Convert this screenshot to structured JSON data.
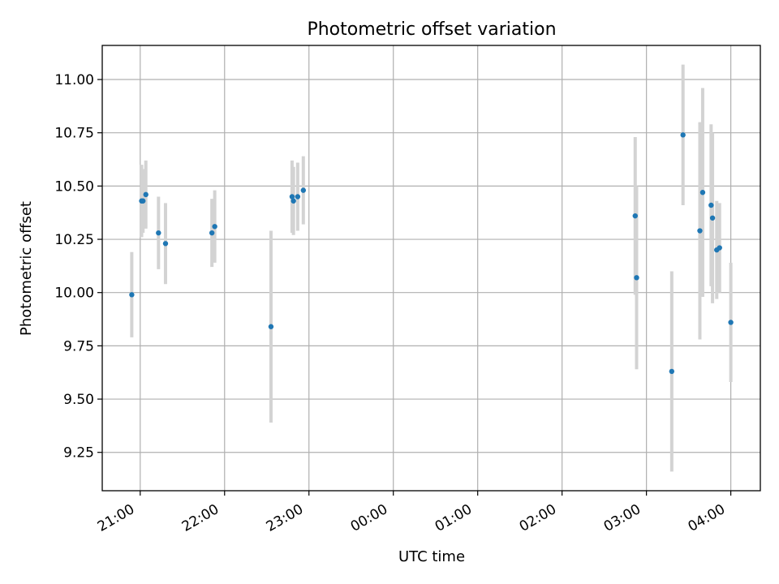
{
  "chart_data": {
    "type": "scatter",
    "title": "Photometric offset variation",
    "xlabel": "UTC time",
    "ylabel": "Photometric offset",
    "xlim": [
      "20:33",
      "04:21"
    ],
    "ylim": [
      9.07,
      11.16
    ],
    "x_ticks": [
      "21:00",
      "22:00",
      "23:00",
      "00:00",
      "01:00",
      "02:00",
      "03:00",
      "04:00"
    ],
    "y_ticks": [
      "9.25",
      "9.50",
      "9.75",
      "10.00",
      "10.25",
      "10.50",
      "10.75",
      "11.00"
    ],
    "grid": true,
    "colors": {
      "points": "#1f77b4",
      "error_bars": "#d3d3d3",
      "grid": "#b0b0b0",
      "axes": "#000000"
    },
    "points": [
      {
        "x": "20:54",
        "y": 9.99,
        "err": 0.2
      },
      {
        "x": "21:01",
        "y": 10.43,
        "err": 0.17
      },
      {
        "x": "21:02",
        "y": 10.43,
        "err": 0.15
      },
      {
        "x": "21:04",
        "y": 10.46,
        "err": 0.16
      },
      {
        "x": "21:13",
        "y": 10.28,
        "err": 0.17
      },
      {
        "x": "21:18",
        "y": 10.23,
        "err": 0.19
      },
      {
        "x": "21:51",
        "y": 10.28,
        "err": 0.16
      },
      {
        "x": "21:53",
        "y": 10.31,
        "err": 0.17
      },
      {
        "x": "22:33",
        "y": 9.84,
        "err": 0.45
      },
      {
        "x": "22:48",
        "y": 10.45,
        "err": 0.17
      },
      {
        "x": "22:49",
        "y": 10.43,
        "err": 0.16
      },
      {
        "x": "22:52",
        "y": 10.45,
        "err": 0.16
      },
      {
        "x": "22:56",
        "y": 10.48,
        "err": 0.16
      },
      {
        "x": "02:52",
        "y": 10.36,
        "err": 0.37
      },
      {
        "x": "02:53",
        "y": 10.07,
        "err": 0.43
      },
      {
        "x": "03:18",
        "y": 9.63,
        "err": 0.47
      },
      {
        "x": "03:26",
        "y": 10.74,
        "err": 0.33
      },
      {
        "x": "03:38",
        "y": 10.29,
        "err": 0.51
      },
      {
        "x": "03:40",
        "y": 10.47,
        "err": 0.49
      },
      {
        "x": "03:46",
        "y": 10.41,
        "err": 0.38
      },
      {
        "x": "03:47",
        "y": 10.35,
        "err": 0.4
      },
      {
        "x": "03:50",
        "y": 10.2,
        "err": 0.23
      },
      {
        "x": "03:52",
        "y": 10.21,
        "err": 0.21
      },
      {
        "x": "04:00",
        "y": 9.86,
        "err": 0.28
      }
    ]
  }
}
